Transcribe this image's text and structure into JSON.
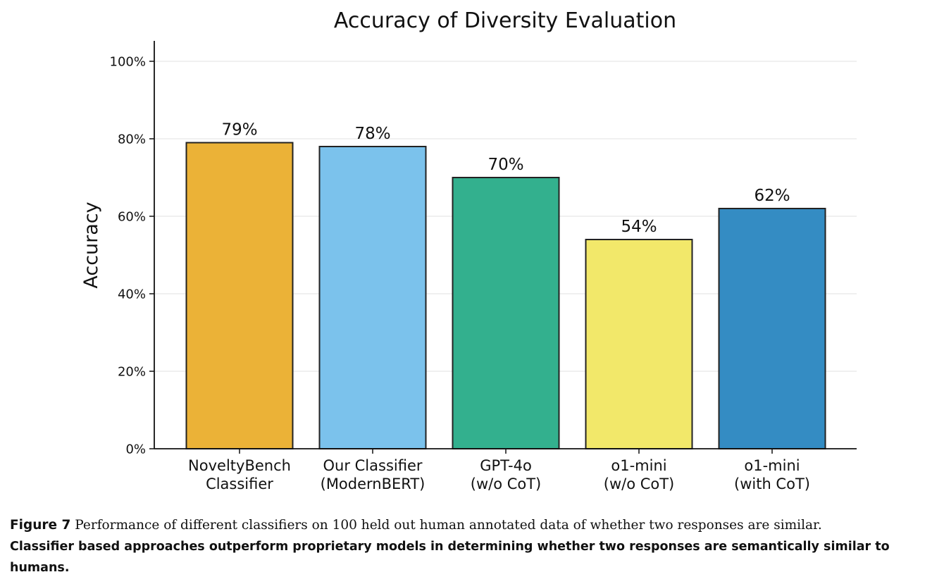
{
  "chart_data": {
    "type": "bar",
    "title": "Accuracy of Diversity Evaluation",
    "ylabel": "Accuracy",
    "xlabel": "",
    "ylim": [
      0,
      100
    ],
    "yticks": [
      "0%",
      "20%",
      "40%",
      "60%",
      "80%",
      "100%"
    ],
    "ytick_values": [
      0,
      20,
      40,
      60,
      80,
      100
    ],
    "grid": "horizontal",
    "categories": [
      [
        "NoveltyBench",
        "Classifier"
      ],
      [
        "Our Classifier",
        "(ModernBERT)"
      ],
      [
        "GPT-4o",
        "(w/o CoT)"
      ],
      [
        "o1-mini",
        "(w/o CoT)"
      ],
      [
        "o1-mini",
        "(with CoT)"
      ]
    ],
    "values": [
      79,
      78,
      70,
      54,
      62
    ],
    "value_labels": [
      "79%",
      "78%",
      "70%",
      "54%",
      "62%"
    ],
    "colors": [
      "#EBB237",
      "#7BC2EC",
      "#33B08E",
      "#F2E86A",
      "#348CC3"
    ],
    "edge_color": "#222222"
  },
  "caption": {
    "label": "Figure 7",
    "text": "Performance of different classifiers on 100 held out human annotated data of whether two responses are similar.",
    "bold_text": "Classifier based approaches outperform proprietary models in determining whether two responses are semantically similar to humans."
  }
}
